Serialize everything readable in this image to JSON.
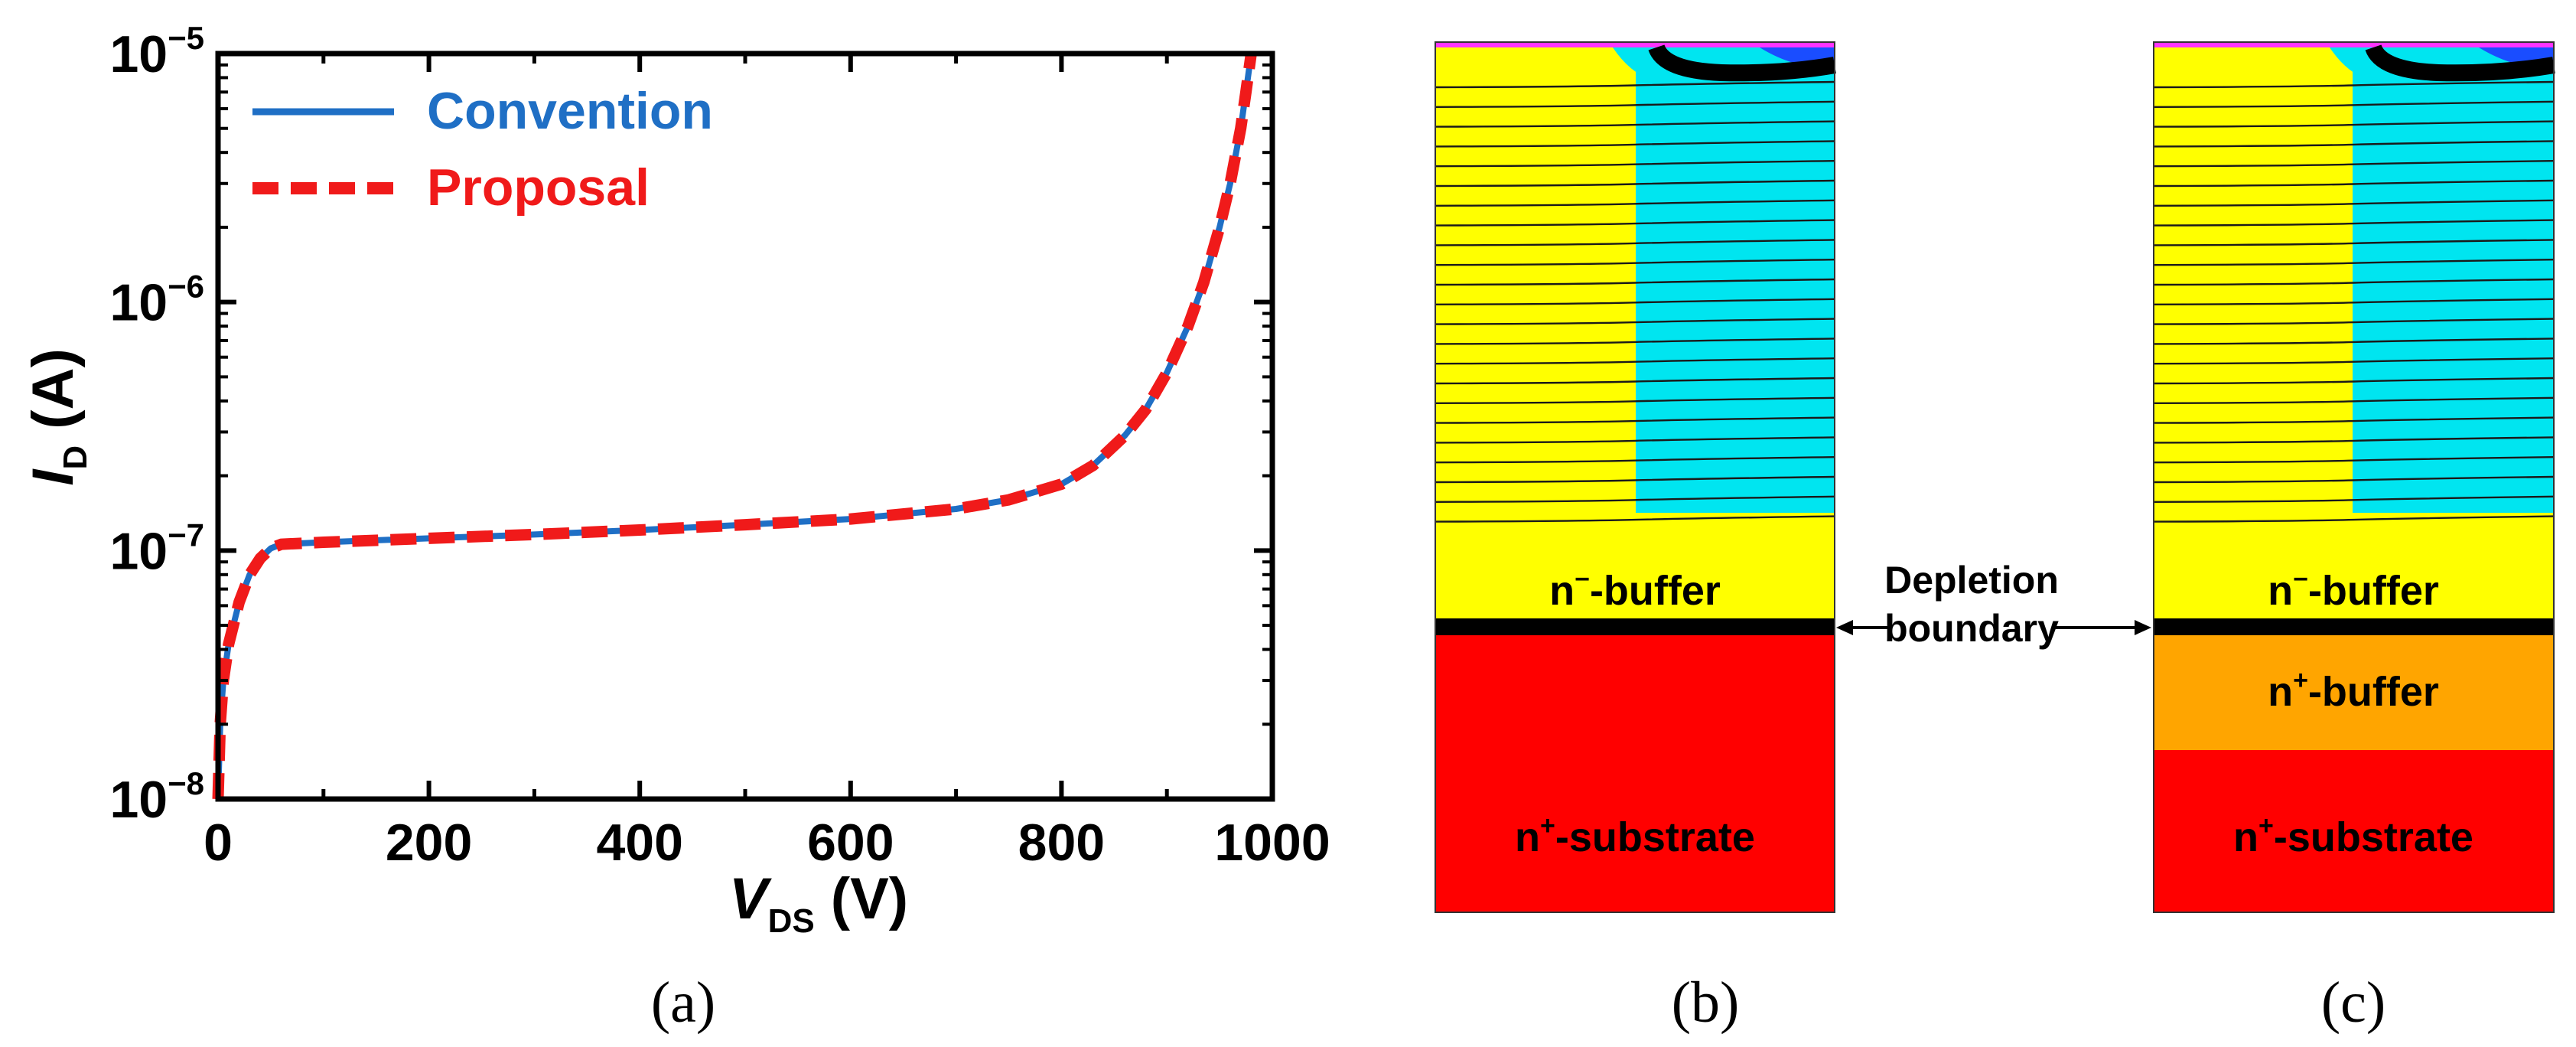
{
  "chart_data": [
    {
      "type": "line",
      "panel_label": "(a)",
      "title": "",
      "xlabel": {
        "main": "V",
        "sub": "DS",
        "unit": " (V)"
      },
      "ylabel": {
        "main": "I",
        "sub": "D",
        "unit": " (A)"
      },
      "xlim": [
        0,
        1000
      ],
      "ylim": [
        1e-08,
        1e-05
      ],
      "yscale": "log",
      "x_ticks": [
        0,
        200,
        400,
        600,
        800,
        1000
      ],
      "x_tick_labels": [
        "0",
        "200",
        "400",
        "600",
        "800",
        "1000"
      ],
      "y_ticks": [
        1e-08,
        1e-07,
        1e-06,
        1e-05
      ],
      "y_tick_labels": [
        {
          "base": "10",
          "exp": "−8"
        },
        {
          "base": "10",
          "exp": "−7"
        },
        {
          "base": "10",
          "exp": "−6"
        },
        {
          "base": "10",
          "exp": "−5"
        }
      ],
      "legend_position": "top-left",
      "series": [
        {
          "name": "Convention",
          "color": "#1f6fc5",
          "style": "solid",
          "points": [
            [
              0,
              1e-08
            ],
            [
              2,
              2e-08
            ],
            [
              5,
              3e-08
            ],
            [
              10,
              4.2e-08
            ],
            [
              20,
              6.2e-08
            ],
            [
              30,
              8e-08
            ],
            [
              40,
              9.3e-08
            ],
            [
              50,
              1.02e-07
            ],
            [
              60,
              1.06e-07
            ],
            [
              100,
              1.08e-07
            ],
            [
              200,
              1.12e-07
            ],
            [
              300,
              1.16e-07
            ],
            [
              400,
              1.21e-07
            ],
            [
              500,
              1.27e-07
            ],
            [
              600,
              1.34e-07
            ],
            [
              700,
              1.47e-07
            ],
            [
              750,
              1.6e-07
            ],
            [
              800,
              1.85e-07
            ],
            [
              830,
              2.2e-07
            ],
            [
              860,
              2.9e-07
            ],
            [
              880,
              3.7e-07
            ],
            [
              900,
              5.2e-07
            ],
            [
              920,
              8e-07
            ],
            [
              935,
              1.2e-06
            ],
            [
              950,
              2e-06
            ],
            [
              960,
              3e-06
            ],
            [
              970,
              5e-06
            ],
            [
              975,
              7e-06
            ],
            [
              980,
              1e-05
            ]
          ]
        },
        {
          "name": "Proposal",
          "color": "#f01a1a",
          "style": "dashed",
          "points": [
            [
              0,
              1e-08
            ],
            [
              2,
              2e-08
            ],
            [
              5,
              3e-08
            ],
            [
              10,
              4.2e-08
            ],
            [
              20,
              6.2e-08
            ],
            [
              30,
              8e-08
            ],
            [
              40,
              9.3e-08
            ],
            [
              50,
              1.02e-07
            ],
            [
              60,
              1.06e-07
            ],
            [
              100,
              1.08e-07
            ],
            [
              200,
              1.12e-07
            ],
            [
              300,
              1.16e-07
            ],
            [
              400,
              1.21e-07
            ],
            [
              500,
              1.27e-07
            ],
            [
              600,
              1.34e-07
            ],
            [
              700,
              1.47e-07
            ],
            [
              750,
              1.6e-07
            ],
            [
              800,
              1.85e-07
            ],
            [
              830,
              2.2e-07
            ],
            [
              860,
              2.9e-07
            ],
            [
              880,
              3.7e-07
            ],
            [
              900,
              5.2e-07
            ],
            [
              920,
              8e-07
            ],
            [
              935,
              1.2e-06
            ],
            [
              950,
              2e-06
            ],
            [
              960,
              3e-06
            ],
            [
              970,
              5e-06
            ],
            [
              975,
              7e-06
            ],
            [
              980,
              1e-05
            ]
          ]
        }
      ]
    },
    {
      "type": "diagram",
      "panel_label": "(b)",
      "regions": [
        {
          "name": "n⁻-buffer",
          "base": "n",
          "sup": "−",
          "rest": "-buffer",
          "color": "#ffff00"
        },
        {
          "name": "n⁺-substrate",
          "base": "n",
          "sup": "+",
          "rest": "-substrate",
          "color": "#ff0000"
        }
      ]
    },
    {
      "type": "diagram",
      "panel_label": "(c)",
      "regions": [
        {
          "name": "n⁻-buffer",
          "base": "n",
          "sup": "−",
          "rest": "-buffer",
          "color": "#ffff00"
        },
        {
          "name": "n⁺-buffer",
          "base": "n",
          "sup": "+",
          "rest": "-buffer",
          "color": "#ffa500"
        },
        {
          "name": "n⁺-substrate",
          "base": "n",
          "sup": "+",
          "rest": "-substrate",
          "color": "#ff0000"
        }
      ]
    }
  ],
  "annotation": {
    "line1": "Depletion",
    "line2": "boundary"
  },
  "colors": {
    "depleted": "#00e5f0",
    "undepleted": "#ffff00",
    "boundary": "#000000",
    "top_metal": "#ff33ff",
    "contour": "#1a1a1a"
  }
}
